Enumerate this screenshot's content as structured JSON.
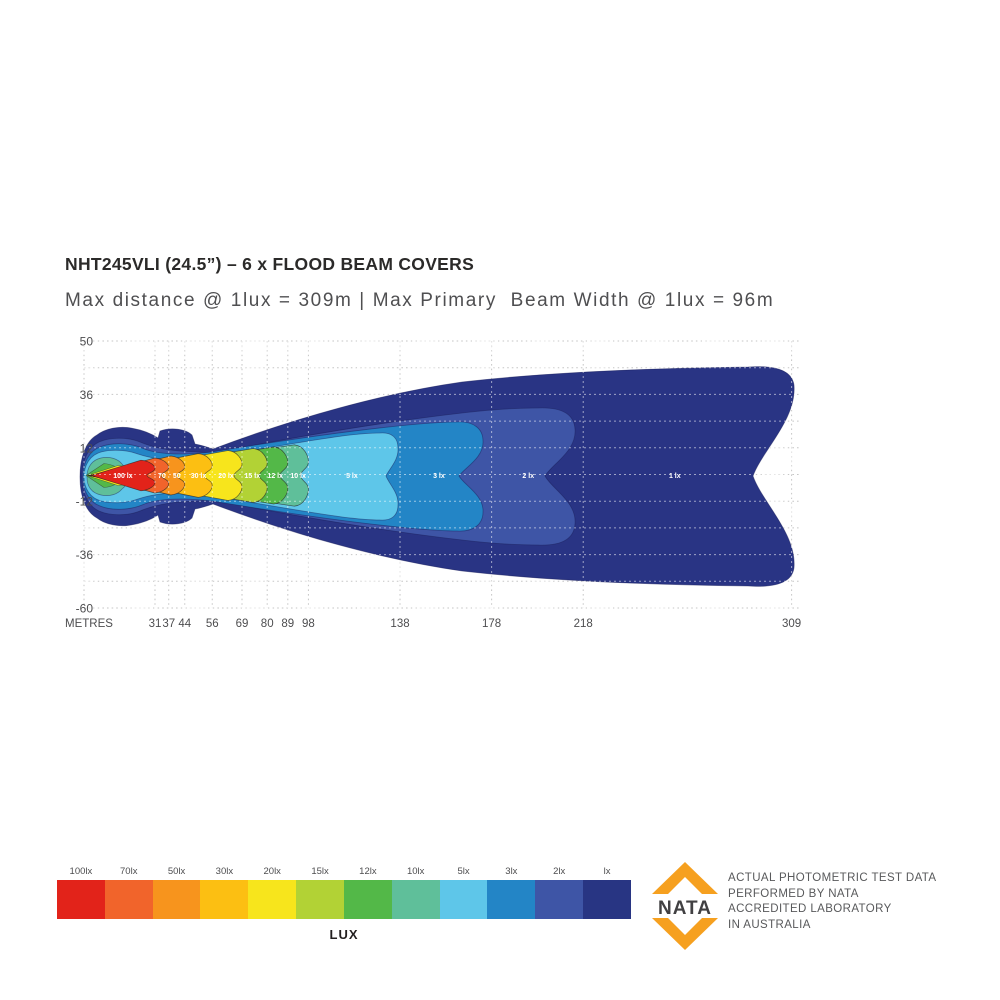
{
  "title": "NHT245VLI (24.5”) – 6 x FLOOD BEAM COVERS",
  "subtitle": "Max distance @ 1lux = 309m | Max Primary  Beam Width @ 1lux = 96m",
  "chart_data": {
    "type": "area",
    "description": "Photometric flood beam lux contour plot: illuminance contours vs distance in metres",
    "x_axis": {
      "label": "METRES",
      "ticks": [
        31,
        37,
        44,
        56,
        69,
        80,
        89,
        98,
        138,
        178,
        218,
        309
      ]
    },
    "y_axis": {
      "tick_labels": [
        "50",
        "36",
        "12",
        "-12",
        "-36",
        "-60"
      ],
      "gridline_count": 11
    },
    "max_distance_at_1lux_m": 309,
    "max_primary_beam_width_at_1lux_m": 96,
    "contours": [
      {
        "lux": 100,
        "label": "100 lx",
        "reach_m": 31,
        "half_width_m": 7,
        "label_x_m": 17,
        "color": "#e2231a"
      },
      {
        "lux": 70,
        "label": "70",
        "reach_m": 37,
        "half_width_m": 8,
        "label_x_m": 34,
        "color": "#f1642b"
      },
      {
        "lux": 50,
        "label": "50",
        "reach_m": 44,
        "half_width_m": 8.9,
        "label_x_m": 40.5,
        "color": "#f7941d"
      },
      {
        "lux": 30,
        "label": "30 lx",
        "reach_m": 56,
        "half_width_m": 10,
        "label_x_m": 50,
        "color": "#fcbf12"
      },
      {
        "lux": 20,
        "label": "20 lx",
        "reach_m": 69,
        "half_width_m": 11.4,
        "label_x_m": 62,
        "color": "#f7e51c"
      },
      {
        "lux": 15,
        "label": "15 lx",
        "reach_m": 80,
        "half_width_m": 12.3,
        "label_x_m": 73.5,
        "color": "#b2d235"
      },
      {
        "lux": 12,
        "label": "12 lx",
        "reach_m": 89,
        "half_width_m": 13,
        "label_x_m": 83.5,
        "color": "#53b848"
      },
      {
        "lux": 10,
        "label": "10 lx",
        "reach_m": 98,
        "half_width_m": 14,
        "label_x_m": 93.5,
        "color": "#5fbf9a"
      },
      {
        "lux": 5,
        "label": "5 lx",
        "reach_m": 138,
        "half_width_m": 20.5,
        "label_x_m": 117,
        "color": "#5ec6e9"
      },
      {
        "lux": 3,
        "label": "3 lx",
        "reach_m": 178,
        "half_width_m": 26.5,
        "label_x_m": 155,
        "color": "#2385c6"
      },
      {
        "lux": 2,
        "label": "2 lx",
        "reach_m": 218,
        "half_width_m": 33,
        "label_x_m": 194,
        "color": "#3e55a6"
      },
      {
        "lux": 1,
        "label": "1 lx",
        "reach_m": 309,
        "half_width_m": 48,
        "label_x_m": 258,
        "color": "#293484"
      }
    ]
  },
  "legend": {
    "units_label": "LUX",
    "items": [
      {
        "label": "100lx",
        "color": "#e2231a"
      },
      {
        "label": "70lx",
        "color": "#f1642b"
      },
      {
        "label": "50lx",
        "color": "#f7941d"
      },
      {
        "label": "30lx",
        "color": "#fcbf12"
      },
      {
        "label": "20lx",
        "color": "#f7e51c"
      },
      {
        "label": "15lx",
        "color": "#b2d235"
      },
      {
        "label": "12lx",
        "color": "#53b848"
      },
      {
        "label": "10lx",
        "color": "#5fbf9a"
      },
      {
        "label": "5lx",
        "color": "#5ec6e9"
      },
      {
        "label": "3lx",
        "color": "#2385c6"
      },
      {
        "label": "2lx",
        "color": "#3e55a6"
      },
      {
        "label": "lx",
        "color": "#283583"
      }
    ]
  },
  "nata": {
    "wordmark": "NATA",
    "brand_color": "#f6a01f",
    "lines": [
      "ACTUAL PHOTOMETRIC TEST DATA",
      "PERFORMED BY NATA",
      "ACCREDITED LABORATORY",
      "IN AUSTRALIA"
    ]
  }
}
